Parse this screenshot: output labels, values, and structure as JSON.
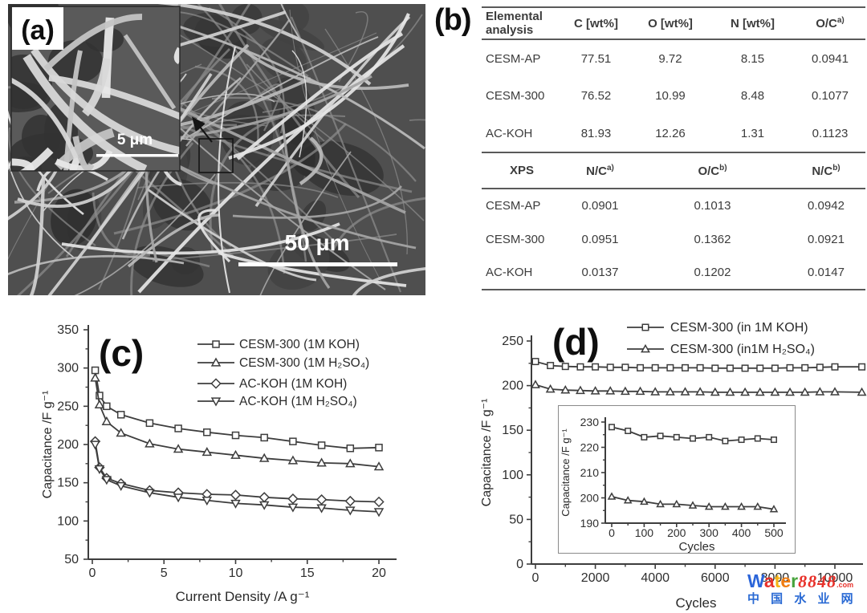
{
  "panel_a": {
    "label": "(a)",
    "inset_scale_bar_label": "5 μm",
    "scale_bar_label": "50 μm"
  },
  "panel_b": {
    "label": "(b)",
    "table": {
      "sections": [
        {
          "headers": [
            "Elemental analysis",
            "C [wt%]",
            "O [wt%]",
            "N [wt%]",
            "O/C^a)"
          ],
          "rows": [
            [
              "CESM-AP",
              "77.51",
              "9.72",
              "8.15",
              "0.0941"
            ],
            [
              "CESM-300",
              "76.52",
              "10.99",
              "8.48",
              "0.1077"
            ],
            [
              "AC-KOH",
              "81.93",
              "12.26",
              "1.31",
              "0.1123"
            ]
          ]
        },
        {
          "headers": [
            "XPS",
            "N/C^a)",
            "O/C^b)",
            "N/C^b)"
          ],
          "rows": [
            [
              "CESM-AP",
              "0.0901",
              "0.1013",
              "0.0942"
            ],
            [
              "CESM-300",
              "0.0951",
              "0.1362",
              "0.0921"
            ],
            [
              "AC-KOH",
              "0.0137",
              "0.1202",
              "0.0147"
            ]
          ]
        }
      ]
    }
  },
  "chart_data": [
    {
      "id": "c",
      "type": "line",
      "title": "(c)",
      "xlabel": "Current Density /A g⁻¹",
      "ylabel": "Capacitance /F g⁻¹",
      "xlim": [
        0,
        21.2
      ],
      "ylim": [
        50,
        350
      ],
      "xticks": [
        0,
        5,
        10,
        15,
        20
      ],
      "xminor": [
        2.5,
        7.5,
        12.5,
        17.5
      ],
      "yticks": [
        50,
        100,
        150,
        200,
        250,
        300,
        350
      ],
      "yminor": [
        75,
        125,
        175,
        225,
        275,
        325
      ],
      "grid": false,
      "legend_position": "top-right",
      "x": [
        0.2,
        0.5,
        1,
        2,
        4,
        6,
        8,
        10,
        12,
        14,
        16,
        18,
        20
      ],
      "series": [
        {
          "name": "CESM-300 (1M KOH)",
          "marker": "square",
          "values": [
            297,
            264,
            250,
            239,
            228,
            221,
            216,
            212,
            209,
            204,
            199,
            195,
            196
          ]
        },
        {
          "name": "CESM-300 (1M H₂SO₄)",
          "marker": "triangle-up",
          "values": [
            287,
            252,
            230,
            215,
            201,
            194,
            190,
            186,
            182,
            179,
            176,
            175,
            171
          ]
        },
        {
          "name": "AC-KOH (1M KOH)",
          "marker": "diamond",
          "values": [
            204,
            170,
            156,
            149,
            140,
            137,
            135,
            134,
            131,
            129,
            128,
            126,
            125
          ]
        },
        {
          "name": "AC-KOH (1M H₂SO₄)",
          "marker": "triangle-down",
          "values": [
            200,
            168,
            154,
            146,
            137,
            131,
            127,
            123,
            121,
            118,
            117,
            114,
            112
          ]
        }
      ]
    },
    {
      "id": "d",
      "type": "line",
      "title": "(d)",
      "xlabel": "Cycles",
      "ylabel": "Capacitance /F g⁻¹",
      "xlim": [
        0,
        10940
      ],
      "ylim": [
        0,
        250
      ],
      "xticks": [
        0,
        2000,
        4000,
        6000,
        8000,
        10000
      ],
      "xminor": [
        1000,
        3000,
        5000,
        7000,
        9000
      ],
      "yticks": [
        0,
        50,
        100,
        150,
        200,
        250
      ],
      "yminor": [
        25,
        75,
        125,
        175,
        225
      ],
      "grid": false,
      "legend_position": "top",
      "x": [
        0,
        500,
        1000,
        1500,
        2000,
        2500,
        3000,
        3500,
        4000,
        4500,
        5000,
        5500,
        6000,
        6500,
        7000,
        7500,
        8000,
        8500,
        9000,
        9500,
        10000,
        10900
      ],
      "series": [
        {
          "name": "CESM-300 (in 1M KOH)",
          "marker": "square",
          "values": [
            227,
            222.5,
            221.5,
            221,
            221,
            220.5,
            220.5,
            220,
            220,
            220,
            220,
            220,
            219.5,
            219.5,
            219.5,
            219.5,
            219.5,
            220,
            220,
            220.5,
            221,
            221
          ]
        },
        {
          "name": "CESM-300 (in1M H₂SO₄)",
          "marker": "triangle-up",
          "values": [
            201,
            196,
            195,
            194.5,
            194,
            194,
            193.5,
            193.5,
            193,
            193,
            193,
            193,
            192.5,
            192.5,
            192.5,
            192.5,
            192.5,
            192.5,
            192.5,
            193,
            193,
            192.5
          ]
        }
      ]
    },
    {
      "id": "d_inset",
      "type": "line",
      "title": "",
      "xlabel": "Cycles",
      "ylabel": "Capacitance /F g⁻¹",
      "xlim": [
        0,
        535
      ],
      "ylim": [
        190,
        231
      ],
      "xticks": [
        0,
        100,
        200,
        300,
        400,
        500
      ],
      "xminor": [
        50,
        150,
        250,
        350,
        450
      ],
      "yticks": [
        190,
        200,
        210,
        220,
        230
      ],
      "yminor": [
        195,
        205,
        215,
        225
      ],
      "grid": false,
      "legend_position": "none",
      "x": [
        0,
        50,
        100,
        150,
        200,
        250,
        300,
        350,
        400,
        450,
        500
      ],
      "series": [
        {
          "name": "CESM-300 (in 1M KOH)",
          "marker": "square",
          "values": [
            228,
            226.5,
            224,
            224.5,
            224,
            223.5,
            224,
            222.5,
            223,
            223.5,
            223
          ]
        },
        {
          "name": "CESM-300 (in1M H₂SO₄)",
          "marker": "triangle-up",
          "values": [
            200.5,
            199,
            198.5,
            197.5,
            197.5,
            197,
            196.5,
            196.5,
            196.5,
            196.5,
            195.5
          ]
        }
      ]
    }
  ],
  "watermark": {
    "brand": "Water",
    "brand_colors": [
      "#2b65d9",
      "#e8322b",
      "#f5b316",
      "#f07d12",
      "#47a33c"
    ],
    "number": "8848",
    "number_color": "#e8322b",
    "suffix": ".com",
    "line2": "中 国 水 业 网",
    "line2_color": "#2a6ad4"
  }
}
